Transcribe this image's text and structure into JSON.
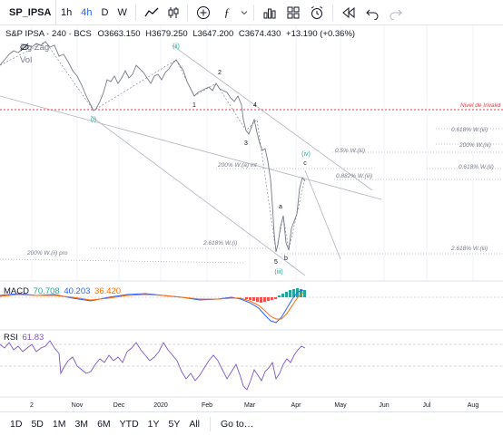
{
  "toolbar": {
    "symbol": "SP_IPSA",
    "intervals": [
      "1h",
      "4h",
      "D",
      "W"
    ],
    "active_interval": "4h",
    "icons": [
      "line-tool-icon",
      "chevron-down-icon",
      "candles-icon",
      "chevron-down-icon",
      "add-indicator-icon",
      "function-icon",
      "chevron-down-icon",
      "bars-icon",
      "templates-icon",
      "alert-icon",
      "replay-icon",
      "undo-icon",
      "redo-icon"
    ]
  },
  "legend": {
    "title": "S&P IPSA · 240 · BCS",
    "open_label": "O",
    "open": "3663.150",
    "high_label": "H",
    "high": "3679.250",
    "low_label": "L",
    "low": "3647.200",
    "close_label": "C",
    "close": "3674.430",
    "change": "+13.190 (+0.36%)",
    "zigzag": "Zig Zag",
    "vol": "Vol"
  },
  "annotations": {
    "nivel": "Nivel de Invalid",
    "fib_618_iii": "0.618% W.(iii)",
    "fib_5_iii": "0.5% W.(iii)",
    "fib_200_iii": "200% W.(iii)",
    "fib_618_ii": "0.618% W.(ii)",
    "fib_882_iii": "0.882% W.(iii)",
    "fib_200_a": "200% W.(a) int",
    "fib_2618_i": "2.618% W.(i)",
    "fib_200_pro": "200% W.(ii) pro",
    "fib_2618_iii": "2.618% W.(iii)",
    "wave_i": "(i)",
    "wave_ii": "(ii)",
    "wave_iii": "(iii)",
    "wave_iv": "(iv)",
    "w1": "1",
    "w2": "2",
    "w3": "3",
    "w4": "4",
    "w5": "5",
    "wa": "a",
    "wb": "b",
    "wc": "c"
  },
  "macd": {
    "name": "MACD",
    "v1": "70.708",
    "v2": "40.203",
    "v3": "36.420"
  },
  "rsi": {
    "name": "RSI",
    "value": "61.83"
  },
  "time_axis": [
    "2",
    "Nov",
    "Dec",
    "2020",
    "Feb",
    "Mar",
    "Apr",
    "May",
    "Jun",
    "Jul",
    "Aug"
  ],
  "ranges": [
    "1D",
    "5D",
    "1M",
    "3M",
    "6M",
    "YTD",
    "1Y",
    "5Y",
    "All"
  ],
  "goto": "Go to…",
  "colors": {
    "price": "#787b86",
    "wave_green": "#26a69a",
    "nivel": "#f23645",
    "macd_line": "#2962ff",
    "signal_line": "#ff6d00",
    "hist_pos": "#26a69a",
    "hist_neg": "#ef5350",
    "rsi": "#7e57c2"
  }
}
